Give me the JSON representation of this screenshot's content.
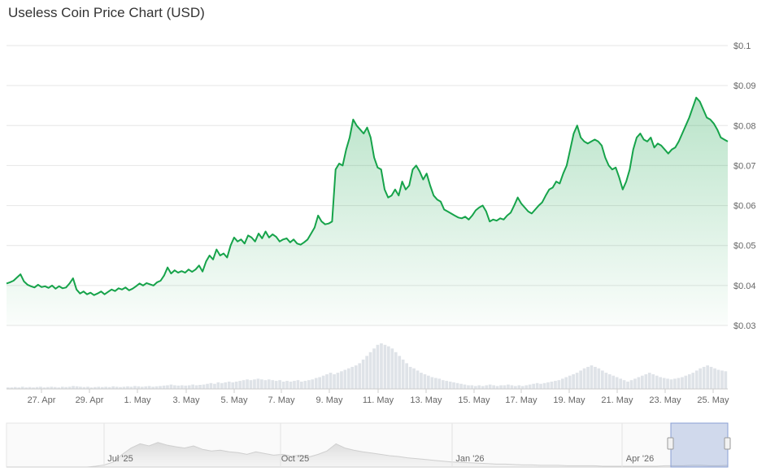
{
  "chart_data": {
    "type": "line",
    "title": "Useless Coin Price Chart (USD)",
    "y_ticks": [
      "$0.1",
      "$0.09",
      "$0.08",
      "$0.07",
      "$0.06",
      "$0.05",
      "$0.04",
      "$0.03"
    ],
    "ylim": [
      0.03,
      0.1
    ],
    "x_ticks": [
      "27. Apr",
      "29. Apr",
      "1. May",
      "3. May",
      "5. May",
      "7. May",
      "9. May",
      "11. May",
      "13. May",
      "15. May",
      "17. May",
      "19. May",
      "21. May",
      "23. May",
      "25. May"
    ],
    "navigator_ticks": [
      "Jul '25",
      "Oct '25",
      "Jan '26",
      "Apr '26"
    ],
    "series": [
      {
        "values": [
          0.0405,
          0.0408,
          0.0412,
          0.042,
          0.0428,
          0.041,
          0.0402,
          0.0398,
          0.0395,
          0.0402,
          0.0396,
          0.0398,
          0.0394,
          0.04,
          0.0392,
          0.0398,
          0.0393,
          0.0395,
          0.0405,
          0.0418,
          0.039,
          0.038,
          0.0385,
          0.0378,
          0.0382,
          0.0376,
          0.038,
          0.0385,
          0.0378,
          0.0384,
          0.039,
          0.0386,
          0.0393,
          0.039,
          0.0395,
          0.0388,
          0.0392,
          0.0398,
          0.0405,
          0.04,
          0.0406,
          0.0403,
          0.04,
          0.0408,
          0.0412,
          0.0425,
          0.0445,
          0.043,
          0.0438,
          0.0432,
          0.0436,
          0.0432,
          0.044,
          0.0434,
          0.044,
          0.045,
          0.0435,
          0.046,
          0.0475,
          0.0465,
          0.049,
          0.0475,
          0.048,
          0.047,
          0.05,
          0.052,
          0.051,
          0.0515,
          0.0505,
          0.0525,
          0.052,
          0.051,
          0.053,
          0.0518,
          0.0535,
          0.052,
          0.0528,
          0.0522,
          0.051,
          0.0515,
          0.0518,
          0.0508,
          0.0515,
          0.0505,
          0.0502,
          0.0508,
          0.0515,
          0.053,
          0.0545,
          0.0575,
          0.056,
          0.0553,
          0.0555,
          0.056,
          0.069,
          0.0705,
          0.07,
          0.074,
          0.077,
          0.0815,
          0.08,
          0.079,
          0.078,
          0.0795,
          0.077,
          0.072,
          0.0695,
          0.069,
          0.064,
          0.062,
          0.0625,
          0.064,
          0.0625,
          0.066,
          0.064,
          0.065,
          0.069,
          0.07,
          0.0685,
          0.0665,
          0.068,
          0.065,
          0.0625,
          0.0615,
          0.061,
          0.059,
          0.0585,
          0.058,
          0.0575,
          0.057,
          0.0568,
          0.0572,
          0.0565,
          0.0575,
          0.0588,
          0.0595,
          0.06,
          0.0585,
          0.056,
          0.0565,
          0.0562,
          0.0568,
          0.0565,
          0.0575,
          0.0582,
          0.06,
          0.062,
          0.0605,
          0.0595,
          0.0585,
          0.058,
          0.059,
          0.06,
          0.0608,
          0.0625,
          0.064,
          0.0645,
          0.066,
          0.0655,
          0.068,
          0.07,
          0.074,
          0.078,
          0.08,
          0.077,
          0.076,
          0.0755,
          0.076,
          0.0765,
          0.076,
          0.075,
          0.072,
          0.07,
          0.069,
          0.0695,
          0.067,
          0.064,
          0.066,
          0.069,
          0.074,
          0.077,
          0.078,
          0.0765,
          0.076,
          0.077,
          0.0745,
          0.0755,
          0.075,
          0.074,
          0.073,
          0.074,
          0.0745,
          0.076,
          0.078,
          0.08,
          0.082,
          0.0845,
          0.087,
          0.086,
          0.084,
          0.082,
          0.0815,
          0.0805,
          0.079,
          0.077,
          0.0765,
          0.076
        ]
      }
    ],
    "volume": [
      0.02,
      0.02,
      0.025,
      0.02,
      0.03,
      0.02,
      0.025,
      0.02,
      0.025,
      0.03,
      0.02,
      0.025,
      0.03,
      0.025,
      0.02,
      0.03,
      0.025,
      0.03,
      0.04,
      0.035,
      0.03,
      0.025,
      0.03,
      0.02,
      0.025,
      0.03,
      0.025,
      0.03,
      0.025,
      0.035,
      0.03,
      0.025,
      0.03,
      0.035,
      0.03,
      0.04,
      0.035,
      0.03,
      0.035,
      0.04,
      0.03,
      0.035,
      0.04,
      0.045,
      0.05,
      0.06,
      0.05,
      0.045,
      0.05,
      0.045,
      0.05,
      0.06,
      0.05,
      0.055,
      0.06,
      0.07,
      0.08,
      0.07,
      0.09,
      0.08,
      0.09,
      0.1,
      0.09,
      0.1,
      0.11,
      0.12,
      0.13,
      0.12,
      0.13,
      0.14,
      0.13,
      0.12,
      0.13,
      0.12,
      0.11,
      0.12,
      0.1,
      0.11,
      0.1,
      0.11,
      0.12,
      0.1,
      0.11,
      0.12,
      0.13,
      0.15,
      0.16,
      0.18,
      0.2,
      0.22,
      0.2,
      0.22,
      0.24,
      0.26,
      0.28,
      0.3,
      0.32,
      0.35,
      0.4,
      0.45,
      0.5,
      0.55,
      0.6,
      0.62,
      0.6,
      0.58,
      0.55,
      0.5,
      0.45,
      0.4,
      0.35,
      0.3,
      0.28,
      0.25,
      0.22,
      0.2,
      0.18,
      0.16,
      0.15,
      0.14,
      0.12,
      0.11,
      0.1,
      0.09,
      0.08,
      0.07,
      0.06,
      0.05,
      0.05,
      0.04,
      0.05,
      0.04,
      0.05,
      0.06,
      0.05,
      0.04,
      0.05,
      0.05,
      0.06,
      0.05,
      0.04,
      0.05,
      0.04,
      0.05,
      0.06,
      0.07,
      0.08,
      0.07,
      0.08,
      0.09,
      0.1,
      0.11,
      0.12,
      0.14,
      0.16,
      0.18,
      0.2,
      0.22,
      0.25,
      0.28,
      0.3,
      0.32,
      0.3,
      0.28,
      0.25,
      0.22,
      0.2,
      0.18,
      0.16,
      0.14,
      0.12,
      0.1,
      0.12,
      0.14,
      0.16,
      0.18,
      0.2,
      0.22,
      0.2,
      0.18,
      0.16,
      0.15,
      0.14,
      0.13,
      0.14,
      0.15,
      0.16,
      0.18,
      0.2,
      0.22,
      0.25,
      0.28,
      0.3,
      0.32,
      0.3,
      0.28,
      0.26,
      0.25,
      0.24
    ]
  }
}
